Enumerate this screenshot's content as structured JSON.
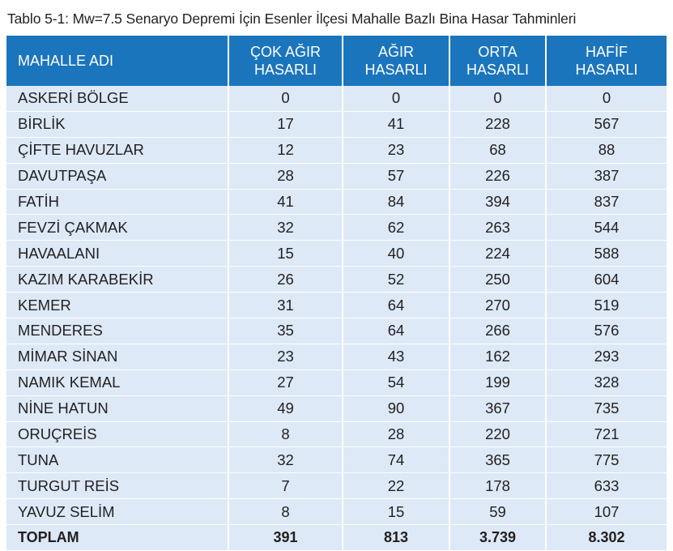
{
  "caption": "Tablo 5-1: Mw=7.5 Senaryo Depremi İçin Esenler İlçesi Mahalle Bazlı Bina Hasar Tahminleri",
  "headers": [
    {
      "line1": "MAHALLE ADI",
      "line2": ""
    },
    {
      "line1": "ÇOK AĞIR",
      "line2": "HASARLI"
    },
    {
      "line1": "AĞIR",
      "line2": "HASARLI"
    },
    {
      "line1": "ORTA",
      "line2": "HASARLI"
    },
    {
      "line1": "HAFİF",
      "line2": "HASARLI"
    }
  ],
  "rows": [
    [
      "ASKERİ BÖLGE",
      "0",
      "0",
      "0",
      "0"
    ],
    [
      "BİRLİK",
      "17",
      "41",
      "228",
      "567"
    ],
    [
      "ÇİFTE HAVUZLAR",
      "12",
      "23",
      "68",
      "88"
    ],
    [
      "DAVUTPAŞA",
      "28",
      "57",
      "226",
      "387"
    ],
    [
      "FATİH",
      "41",
      "84",
      "394",
      "837"
    ],
    [
      "FEVZİ ÇAKMAK",
      "32",
      "62",
      "263",
      "544"
    ],
    [
      "HAVAALANI",
      "15",
      "40",
      "224",
      "588"
    ],
    [
      "KAZIM KARABEKİR",
      "26",
      "52",
      "250",
      "604"
    ],
    [
      "KEMER",
      "31",
      "64",
      "270",
      "519"
    ],
    [
      "MENDERES",
      "35",
      "64",
      "266",
      "576"
    ],
    [
      "MİMAR SİNAN",
      "23",
      "43",
      "162",
      "293"
    ],
    [
      "NAMIK KEMAL",
      "27",
      "54",
      "199",
      "328"
    ],
    [
      "NİNE HATUN",
      "49",
      "90",
      "367",
      "735"
    ],
    [
      "ORUÇREİS",
      "8",
      "28",
      "220",
      "721"
    ],
    [
      "TUNA",
      "32",
      "74",
      "365",
      "775"
    ],
    [
      "TURGUT REİS",
      "7",
      "22",
      "178",
      "633"
    ],
    [
      "YAVUZ SELİM",
      "8",
      "15",
      "59",
      "107"
    ]
  ],
  "total": [
    "TOPLAM",
    "391",
    "813",
    "3.739",
    "8.302"
  ],
  "colors": {
    "header_bg": "#1b75bc",
    "row_bg": "#dde9f6",
    "header_text": "#ffffff"
  }
}
